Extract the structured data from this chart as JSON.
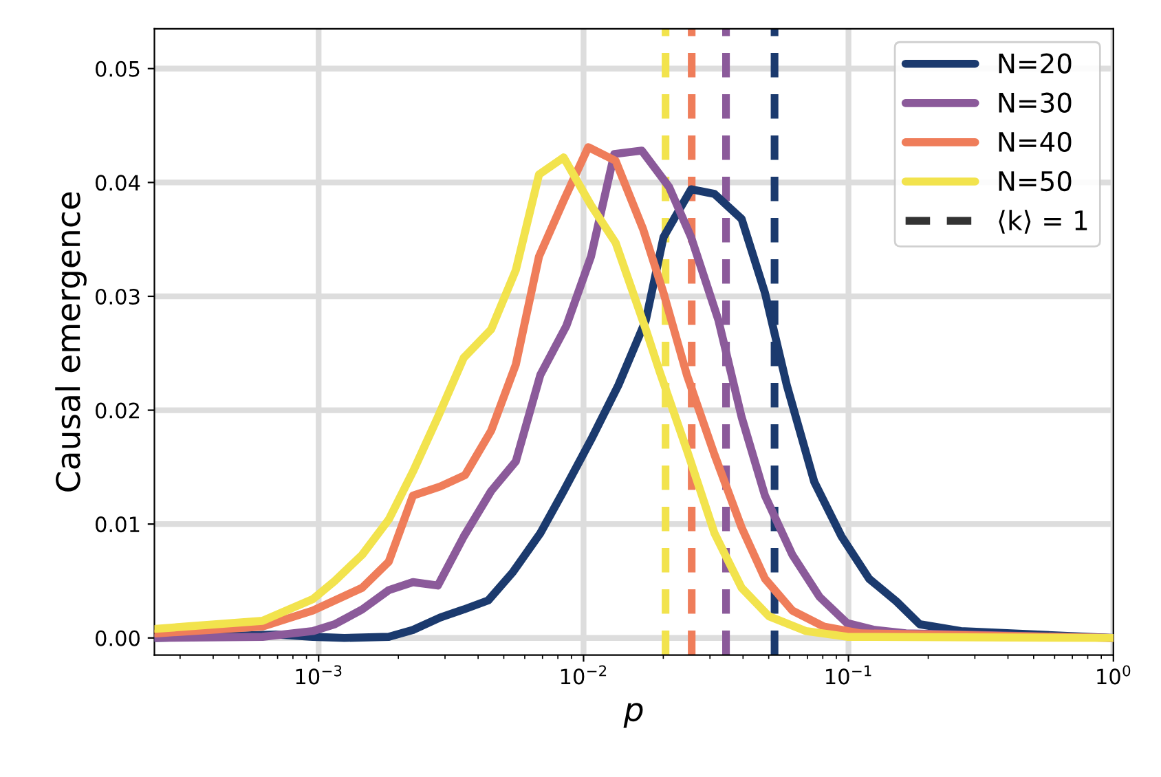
{
  "chart_data": {
    "type": "line",
    "xlabel": "p",
    "ylabel": "Causal emergence",
    "log": "x",
    "grid": true,
    "legend": "top right",
    "line_style": "solid",
    "marker": "none",
    "xlim": [
      0.00024,
      1
    ],
    "ylim": [
      -0.0015,
      0.0535
    ],
    "xticks": [
      {
        "value": 0.001,
        "label": "10$^{−3}$"
      },
      {
        "value": 0.01,
        "label": "10$^{−2}$"
      },
      {
        "value": 0.1,
        "label": "10$^{−1}$"
      },
      {
        "value": 1,
        "label": "10$^{0}$"
      }
    ],
    "yticks": [
      {
        "value": 0,
        "label": "0.00"
      },
      {
        "value": 0.01,
        "label": "0.01"
      },
      {
        "value": 0.02,
        "label": "0.02"
      },
      {
        "value": 0.03,
        "label": "0.03"
      },
      {
        "value": 0.04,
        "label": "0.04"
      },
      {
        "value": 0.05,
        "label": "0.05"
      }
    ],
    "series": [
      {
        "name": "N=20",
        "color": "#1b3a6e",
        "x": [
          0.000243,
          0.00069,
          0.00095,
          0.00125,
          0.00184,
          0.00227,
          0.00288,
          0.00353,
          0.00437,
          0.00542,
          0.00687,
          0.00841,
          0.01067,
          0.01354,
          0.01718,
          0.02004,
          0.02546,
          0.0312,
          0.0395,
          0.0484,
          0.0585,
          0.0743,
          0.0942,
          0.1196,
          0.1518,
          0.1857,
          0.2655,
          1
        ],
        "values": [
          0.0,
          0.0003,
          0.0001,
          0.0,
          0.0001,
          0.0007,
          0.0018,
          0.0025,
          0.0033,
          0.0058,
          0.0092,
          0.0129,
          0.0174,
          0.0222,
          0.0279,
          0.0352,
          0.0394,
          0.039,
          0.0368,
          0.0303,
          0.0222,
          0.0137,
          0.0089,
          0.0052,
          0.0032,
          0.0012,
          0.0006,
          0.0
        ]
      },
      {
        "name": "N=30",
        "color": "#8b5a9a",
        "x": [
          0.000243,
          0.000614,
          0.00095,
          0.00115,
          0.00146,
          0.00184,
          0.00227,
          0.00282,
          0.00353,
          0.00448,
          0.00555,
          0.00687,
          0.00861,
          0.01067,
          0.01306,
          0.01659,
          0.02104,
          0.02546,
          0.0323,
          0.0395,
          0.0484,
          0.0614,
          0.0778,
          0.0988,
          0.1254,
          0.1648,
          1
        ],
        "values": [
          0.0,
          0.0001,
          0.0006,
          0.0012,
          0.0025,
          0.0042,
          0.0049,
          0.0046,
          0.0089,
          0.0129,
          0.0155,
          0.0231,
          0.0274,
          0.0335,
          0.0425,
          0.0428,
          0.0396,
          0.0352,
          0.0279,
          0.0194,
          0.0125,
          0.0073,
          0.0036,
          0.0013,
          0.0007,
          0.0004,
          0.0
        ]
      },
      {
        "name": "N=40",
        "color": "#ef7d5a",
        "x": [
          0.000243,
          0.000614,
          0.00095,
          0.00146,
          0.00184,
          0.00227,
          0.00288,
          0.00357,
          0.00448,
          0.00555,
          0.00679,
          0.00841,
          0.01042,
          0.01322,
          0.01678,
          0.02004,
          0.02455,
          0.0312,
          0.0395,
          0.0484,
          0.0614,
          0.0807,
          0.1114,
          1
        ],
        "values": [
          0.0004,
          0.001,
          0.0024,
          0.0044,
          0.0067,
          0.0125,
          0.0133,
          0.0143,
          0.0182,
          0.024,
          0.0335,
          0.0384,
          0.0431,
          0.0419,
          0.0359,
          0.0303,
          0.0231,
          0.0161,
          0.0097,
          0.0052,
          0.0024,
          0.001,
          0.0004,
          0.0
        ]
      },
      {
        "name": "N=50",
        "color": "#f2e34d",
        "x": [
          0.000243,
          0.000614,
          0.00095,
          0.00115,
          0.00146,
          0.00184,
          0.00227,
          0.00282,
          0.00353,
          0.00448,
          0.00555,
          0.00679,
          0.00841,
          0.01067,
          0.01322,
          0.01718,
          0.01937,
          0.02455,
          0.0312,
          0.0395,
          0.0501,
          0.0692,
          0.0988,
          1
        ],
        "values": [
          0.0008,
          0.0015,
          0.0034,
          0.005,
          0.0073,
          0.0104,
          0.0146,
          0.0194,
          0.0246,
          0.0271,
          0.0323,
          0.0407,
          0.0422,
          0.038,
          0.0347,
          0.0271,
          0.0234,
          0.0165,
          0.0092,
          0.0044,
          0.0019,
          0.0006,
          0.0001,
          0.0
        ]
      }
    ],
    "annotations": [
      "⟨k⟩ = 1"
    ],
    "ref_lines": [
      {
        "axis": "x",
        "value": 0.0526,
        "color": "#1b3a6e",
        "line_style": "dashed"
      },
      {
        "axis": "x",
        "value": 0.0345,
        "color": "#8b5a9a",
        "line_style": "dashed"
      },
      {
        "axis": "x",
        "value": 0.0256,
        "color": "#ef7d5a",
        "line_style": "dashed"
      },
      {
        "axis": "x",
        "value": 0.0204,
        "color": "#f2e34d",
        "line_style": "dashed"
      }
    ]
  }
}
